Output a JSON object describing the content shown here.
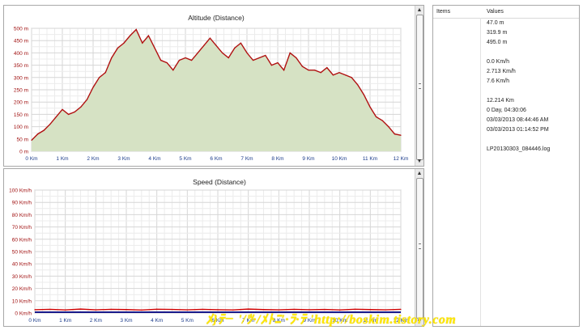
{
  "altitude_chart": {
    "title": "Altitude (Distance)",
    "chart_data": {
      "type": "area",
      "title": "Altitude (Distance)",
      "xlabel": "",
      "ylabel": "",
      "xlim": [
        0,
        12
      ],
      "ylim": [
        0,
        500
      ],
      "grid": true,
      "x_ticks": [
        "0 Km",
        "1 Km",
        "2 Km",
        "3 Km",
        "4 Km",
        "5 Km",
        "6 Km",
        "7 Km",
        "8 Km",
        "9 Km",
        "10 Km",
        "11 Km",
        "12 Km"
      ],
      "y_ticks": [
        "0 m",
        "50 m",
        "100 m",
        "150 m",
        "200 m",
        "250 m",
        "300 m",
        "350 m",
        "400 m",
        "450 m",
        "500 m"
      ],
      "line_color": "#b01010",
      "fill_color": "#d6e2c4",
      "series": [
        {
          "x": [
            0,
            0.2,
            0.4,
            0.6,
            0.8,
            1.0,
            1.2,
            1.4,
            1.6,
            1.8,
            2.0,
            2.2,
            2.4,
            2.6,
            2.8,
            3.0,
            3.2,
            3.4,
            3.6,
            3.8,
            4.0,
            4.2,
            4.4,
            4.6,
            4.8,
            5.0,
            5.2,
            5.4,
            5.6,
            5.8,
            6.0,
            6.2,
            6.4,
            6.6,
            6.8,
            7.0,
            7.2,
            7.4,
            7.6,
            7.8,
            8.0,
            8.2,
            8.4,
            8.6,
            8.8,
            9.0,
            9.2,
            9.4,
            9.6,
            9.8,
            10.0,
            10.2,
            10.4,
            10.6,
            10.8,
            11.0,
            11.2,
            11.4,
            11.6,
            11.8,
            12.0
          ],
          "y": [
            45,
            70,
            85,
            110,
            140,
            170,
            150,
            160,
            180,
            210,
            260,
            300,
            320,
            380,
            420,
            440,
            470,
            495,
            440,
            470,
            420,
            370,
            360,
            330,
            370,
            380,
            370,
            400,
            430,
            460,
            430,
            400,
            380,
            420,
            440,
            400,
            370,
            380,
            390,
            350,
            360,
            330,
            400,
            380,
            345,
            330,
            330,
            320,
            340,
            310,
            320,
            310,
            300,
            270,
            230,
            180,
            140,
            125,
            100,
            70,
            65
          ]
        }
      ]
    }
  },
  "speed_chart": {
    "title": "Speed (Distance)",
    "chart_data": {
      "type": "line",
      "title": "Speed (Distance)",
      "xlabel": "",
      "ylabel": "",
      "xlim": [
        0,
        12
      ],
      "ylim": [
        0,
        100
      ],
      "grid": true,
      "x_ticks": [
        "0 Km",
        "1 Km",
        "2 Km",
        "3 Km",
        "4 Km",
        "5 Km",
        "6 Km",
        "7 Km",
        "8 Km",
        "9 Km",
        "10 Km",
        "11 Km",
        "12 Km"
      ],
      "y_ticks": [
        "0 Km/h",
        "10 Km/h",
        "20 Km/h",
        "30 Km/h",
        "40 Km/h",
        "50 Km/h",
        "60 Km/h",
        "70 Km/h",
        "80 Km/h",
        "90 Km/h",
        "100 Km/h"
      ],
      "line_color": "#d00000",
      "baseline_color": "#1a1a8a",
      "series": [
        {
          "x": [
            0,
            0.5,
            1,
            1.5,
            2,
            2.5,
            3,
            3.5,
            4,
            4.5,
            5,
            5.5,
            6,
            6.5,
            7,
            7.5,
            8,
            8.5,
            9,
            9.5,
            10,
            10.5,
            11,
            11.5,
            12
          ],
          "y": [
            2.7,
            3,
            2.5,
            3.2,
            2.6,
            3,
            2.8,
            2.4,
            3.1,
            2.9,
            2.6,
            3,
            2.7,
            2.5,
            3.2,
            2.8,
            2.6,
            3,
            2.7,
            2.9,
            2.5,
            3.1,
            2.8,
            2.6,
            3
          ]
        }
      ]
    }
  },
  "properties": {
    "col_items": "Items",
    "col_values": "Values",
    "values": [
      "47.0 m",
      "319.9 m",
      "495.0 m",
      "",
      "0.0 Km/h",
      "2.713 Km/h",
      "7.6 Km/h",
      "",
      "12.214 Km",
      "0 Day, 04:30:06",
      "03/03/2013 08:44:46 AM",
      "03/03/2013 01:14:52 PM",
      "",
      "LP20130303_084446.log"
    ]
  },
  "scrollbar": {
    "up_glyph": "▲",
    "down_glyph": "▼"
  },
  "watermark": " ﾒ}ﾃ╴'/ﾂ·/ﾒﾄﾆ′·ﾗ·ﾃ 'http://boskim.tistory.com"
}
